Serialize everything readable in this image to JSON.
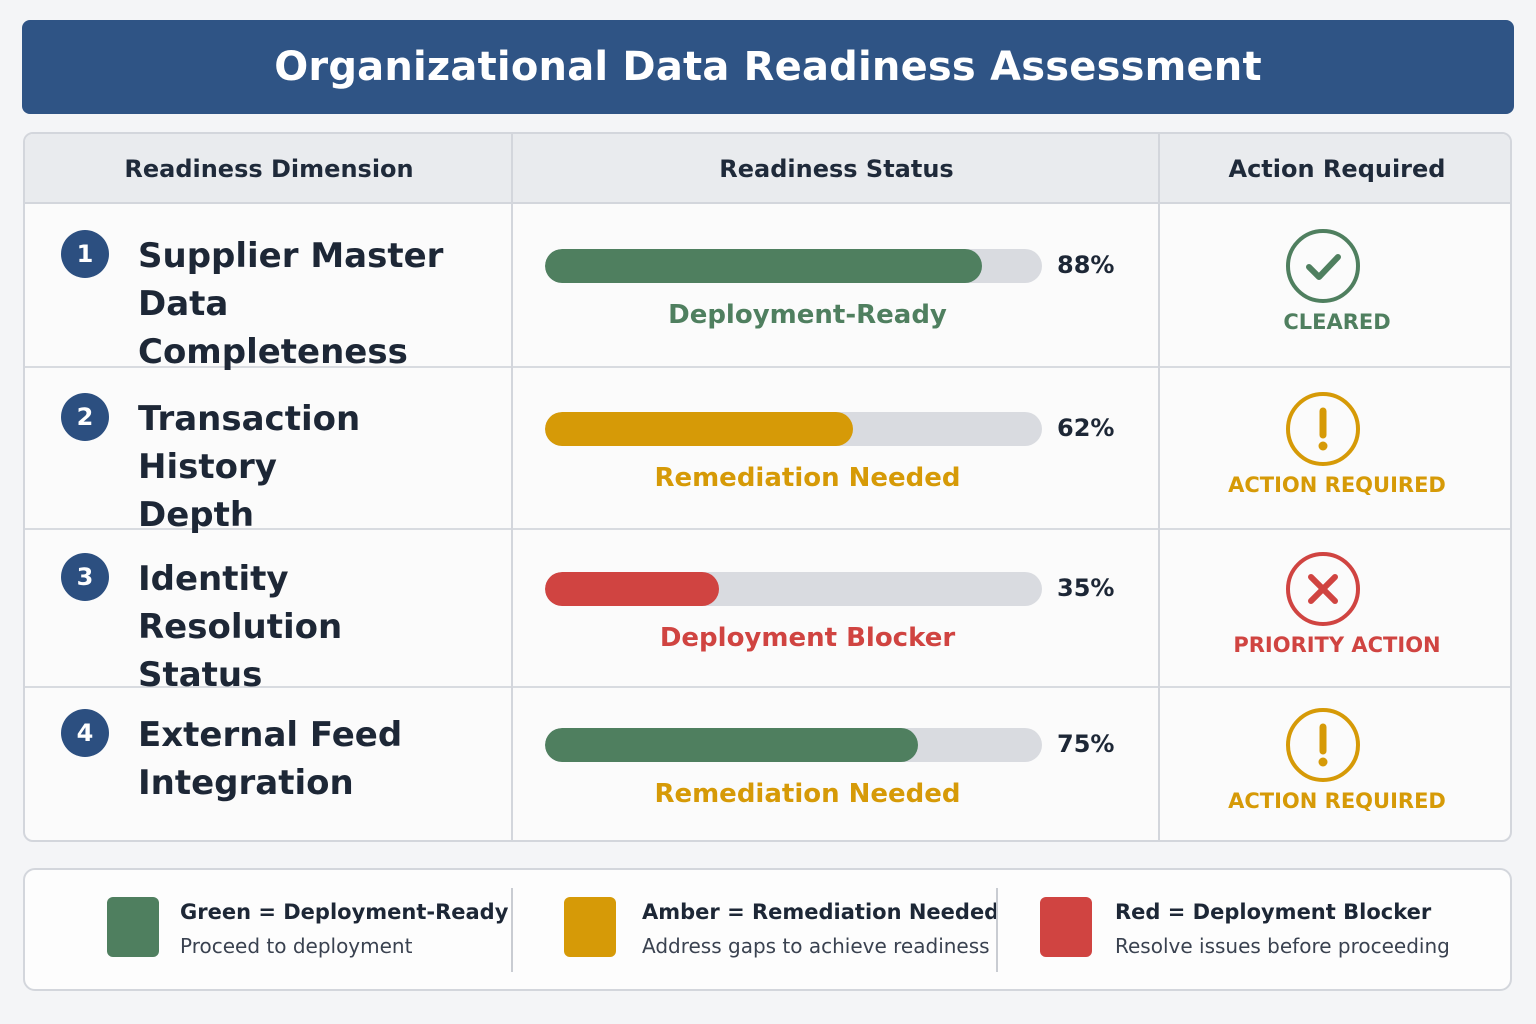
{
  "title": "Organizational Data Readiness Assessment",
  "columns": [
    "Readiness Dimension",
    "Readiness Status",
    "Action Required"
  ],
  "colors": {
    "header_bg": "#2f5485",
    "green": "#4f7f5f",
    "amber": "#d69a07",
    "red": "#d04441"
  },
  "rows": [
    {
      "number": "1",
      "dimension": [
        "Supplier Master Data",
        "Completeness"
      ],
      "percent": 88,
      "percent_label": "88%",
      "bar_color": "green",
      "status": "Deployment-Ready",
      "status_color": "green",
      "icon": "check-circle-icon",
      "action": "CLEARED",
      "action_color": "green"
    },
    {
      "number": "2",
      "dimension": [
        "Transaction History",
        "Depth"
      ],
      "percent": 62,
      "percent_label": "62%",
      "bar_color": "amber",
      "status": "Remediation Needed",
      "status_color": "amber",
      "icon": "exclamation-circle-icon",
      "action": "ACTION REQUIRED",
      "action_color": "amber"
    },
    {
      "number": "3",
      "dimension": [
        "Identity Resolution",
        "Status"
      ],
      "percent": 35,
      "percent_label": "35%",
      "bar_color": "red",
      "status": "Deployment Blocker",
      "status_color": "red",
      "icon": "x-circle-icon",
      "action": "PRIORITY ACTION",
      "action_color": "red"
    },
    {
      "number": "4",
      "dimension": [
        "External Feed",
        "Integration"
      ],
      "percent": 75,
      "percent_label": "75%",
      "bar_color": "green",
      "status": "Remediation Needed",
      "status_color": "amber",
      "icon": "exclamation-circle-icon",
      "action": "ACTION REQUIRED",
      "action_color": "amber"
    }
  ],
  "legend": [
    {
      "color": "green",
      "title": "Green = Deployment-Ready",
      "desc": "Proceed to deployment"
    },
    {
      "color": "amber",
      "title": "Amber = Remediation Needed",
      "desc": "Address gaps to achieve readiness"
    },
    {
      "color": "red",
      "title": "Red = Deployment Blocker",
      "desc": "Resolve issues before proceeding"
    }
  ]
}
